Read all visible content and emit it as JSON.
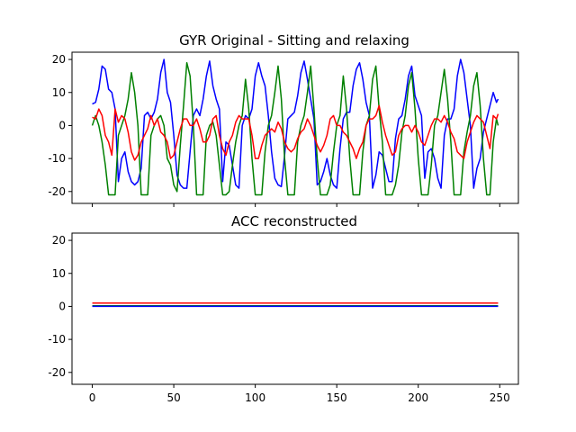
{
  "chart_data": [
    {
      "type": "line",
      "title": "GYR Original - Sitting and relaxing",
      "xlim": [
        -12.45,
        261.45
      ],
      "ylim": [
        -23.6,
        22.2
      ],
      "yticks": [
        20,
        10,
        0,
        -10,
        -20
      ],
      "xticks": [
        0,
        50,
        100,
        150,
        200,
        250
      ],
      "xticklabels_visible": false,
      "grid": false,
      "series": [
        {
          "color": "#0000ff",
          "x": [
            0,
            2,
            4,
            6,
            8,
            10,
            12,
            14,
            16,
            18,
            20,
            22,
            24,
            26,
            28,
            30,
            32,
            34,
            36,
            38,
            40,
            42,
            44,
            46,
            48,
            50,
            52,
            54,
            56,
            58,
            60,
            62,
            64,
            66,
            68,
            70,
            72,
            74,
            76,
            78,
            80,
            82,
            84,
            86,
            88,
            90,
            92,
            94,
            96,
            98,
            100,
            102,
            104,
            106,
            108,
            110,
            112,
            114,
            116,
            118,
            120,
            122,
            124,
            126,
            128,
            130,
            132,
            134,
            136,
            138,
            140,
            142,
            144,
            146,
            148,
            150,
            152,
            154,
            156,
            158,
            160,
            162,
            164,
            166,
            168,
            170,
            172,
            174,
            176,
            178,
            180,
            182,
            184,
            186,
            188,
            190,
            192,
            194,
            196,
            198,
            200,
            202,
            204,
            206,
            208,
            210,
            212,
            214,
            216,
            218,
            220,
            222,
            224,
            226,
            228,
            230,
            232,
            234,
            236,
            238,
            240,
            242,
            244,
            246,
            248,
            249
          ],
          "y": [
            6.5,
            7,
            11,
            18,
            17,
            11,
            10,
            5,
            -17,
            -10,
            -8,
            -14,
            -17,
            -18,
            -17,
            -13,
            3,
            4,
            2,
            4,
            8,
            16,
            20,
            10,
            7,
            -3,
            -15,
            -18,
            -19,
            -19,
            -8,
            3,
            5,
            3,
            8,
            15,
            19.5,
            12,
            8,
            5,
            -17,
            -5,
            -6,
            -12,
            -18,
            -19,
            0,
            3,
            2,
            5,
            15,
            19,
            15,
            12,
            3,
            -8,
            -16,
            -18,
            -18.5,
            -9,
            2,
            3,
            4,
            9,
            16,
            19.5,
            14,
            8,
            2,
            -18,
            -17,
            -14,
            -10,
            -15,
            -18,
            -19,
            -7,
            2,
            4,
            4,
            12,
            17,
            19,
            14,
            7,
            3,
            -19,
            -15,
            -8,
            -9,
            -13,
            -17,
            -17,
            -4,
            2,
            3,
            8,
            15,
            18,
            9,
            6,
            3,
            -16,
            -8,
            -7,
            -10,
            -16,
            -19,
            -3,
            2,
            2,
            5,
            15,
            20,
            16,
            8,
            0,
            -19,
            -13,
            -10,
            -2,
            2,
            6,
            10,
            7,
            8
          ]
        },
        {
          "color": "#008000",
          "x": [
            0,
            2,
            4,
            6,
            8,
            10,
            12,
            14,
            16,
            18,
            20,
            22,
            24,
            26,
            28,
            30,
            32,
            34,
            36,
            38,
            40,
            42,
            44,
            46,
            48,
            50,
            52,
            54,
            56,
            58,
            60,
            62,
            64,
            66,
            68,
            70,
            72,
            74,
            76,
            78,
            80,
            82,
            84,
            86,
            88,
            90,
            92,
            94,
            96,
            98,
            100,
            102,
            104,
            106,
            108,
            110,
            112,
            114,
            116,
            118,
            120,
            122,
            124,
            126,
            128,
            130,
            132,
            134,
            136,
            138,
            140,
            142,
            144,
            146,
            148,
            150,
            152,
            154,
            156,
            158,
            160,
            162,
            164,
            166,
            168,
            170,
            172,
            174,
            176,
            178,
            180,
            182,
            184,
            186,
            188,
            190,
            192,
            194,
            196,
            198,
            200,
            202,
            204,
            206,
            208,
            210,
            212,
            214,
            216,
            218,
            220,
            222,
            224,
            226,
            228,
            230,
            232,
            234,
            236,
            238,
            240,
            242,
            244,
            246,
            248,
            249
          ],
          "y": [
            0,
            3,
            0,
            -5,
            -12,
            -21,
            -21,
            -21,
            -3,
            0,
            3,
            8,
            16,
            10,
            0,
            -21,
            -21,
            -21,
            -3,
            0,
            2,
            3,
            0,
            -10,
            -12,
            -18,
            -20,
            -6,
            6,
            19,
            15,
            0,
            -21,
            -21,
            -21,
            -3,
            0,
            1,
            -3,
            -12,
            -21,
            -21,
            -20,
            -12,
            -5,
            0,
            3,
            14,
            5,
            -10,
            -21,
            -21,
            -21,
            -8,
            0,
            3,
            10,
            18,
            8,
            -10,
            -21,
            -21,
            -21,
            -5,
            0,
            3,
            10,
            18,
            5,
            -10,
            -21,
            -21,
            -21,
            -18,
            -8,
            0,
            3,
            15,
            5,
            -10,
            -21,
            -21,
            -21,
            -8,
            0,
            3,
            14,
            18,
            5,
            -5,
            -21,
            -21,
            -21,
            -18,
            -12,
            -2,
            3,
            12,
            16,
            5,
            -10,
            -21,
            -21,
            -21,
            -12,
            0,
            3,
            10,
            17,
            8,
            -5,
            -21,
            -21,
            -21,
            -8,
            -2,
            3,
            12,
            16,
            6,
            -10,
            -21,
            -21,
            -5,
            2,
            0
          ]
        },
        {
          "color": "#ff0000",
          "x": [
            0,
            2,
            4,
            6,
            8,
            10,
            12,
            14,
            16,
            18,
            20,
            22,
            24,
            26,
            28,
            30,
            32,
            34,
            36,
            38,
            40,
            42,
            44,
            46,
            48,
            50,
            52,
            54,
            56,
            58,
            60,
            62,
            64,
            66,
            68,
            70,
            72,
            74,
            76,
            78,
            80,
            82,
            84,
            86,
            88,
            90,
            92,
            94,
            96,
            98,
            100,
            102,
            104,
            106,
            108,
            110,
            112,
            114,
            116,
            118,
            120,
            122,
            124,
            126,
            128,
            130,
            132,
            134,
            136,
            138,
            140,
            142,
            144,
            146,
            148,
            150,
            152,
            154,
            156,
            158,
            160,
            162,
            164,
            166,
            168,
            170,
            172,
            174,
            176,
            178,
            180,
            182,
            184,
            186,
            188,
            190,
            192,
            194,
            196,
            198,
            200,
            202,
            204,
            206,
            208,
            210,
            212,
            214,
            216,
            218,
            220,
            222,
            224,
            226,
            228,
            230,
            232,
            234,
            236,
            238,
            240,
            242,
            244,
            246,
            248,
            249
          ],
          "y": [
            2.5,
            2,
            5,
            3,
            -3,
            -5,
            -9,
            5,
            1,
            3,
            2,
            -2,
            -8,
            -10.5,
            -9,
            -5,
            -3,
            -1,
            3,
            0,
            2,
            -2,
            -3,
            -5,
            -10,
            -9,
            -5,
            -1,
            2,
            2,
            0,
            0,
            2,
            -1,
            -5,
            -5,
            -3,
            2,
            3,
            -3,
            -7,
            -9,
            -5,
            -3,
            1,
            3,
            2,
            2,
            2,
            -3,
            -10,
            -10,
            -6,
            -3,
            -2,
            -1,
            -2,
            1,
            -1,
            -5,
            -7,
            -8,
            -7,
            -4,
            -2,
            -1,
            2,
            0,
            -3,
            -6,
            -8,
            -6,
            -3,
            2,
            3,
            0,
            0,
            -2,
            -3,
            -5,
            -7,
            -10,
            -7,
            -5,
            0,
            2,
            2,
            3,
            6,
            1,
            -3,
            -6,
            -9,
            -8,
            -3,
            -1,
            0,
            0,
            -2,
            0,
            -2,
            -5,
            -6,
            -3,
            0,
            2,
            2,
            1,
            3,
            1,
            -2,
            -4,
            -8,
            -9,
            -10,
            -5,
            -2,
            1,
            3,
            2,
            1,
            -3,
            -7,
            3,
            2,
            3.5
          ]
        }
      ]
    },
    {
      "type": "line",
      "title": "ACC reconstructed",
      "xlim": [
        -12.45,
        261.45
      ],
      "ylim": [
        -23.6,
        22.2
      ],
      "yticks": [
        20,
        10,
        0,
        -10,
        -20
      ],
      "xticks": [
        0,
        50,
        100,
        150,
        200,
        250
      ],
      "grid": false,
      "series": [
        {
          "color": "#008000",
          "x": [
            0,
            249
          ],
          "y": [
            0.2,
            0.2
          ]
        },
        {
          "color": "#0000ff",
          "x": [
            0,
            249
          ],
          "y": [
            0,
            0
          ]
        },
        {
          "color": "#ff0000",
          "x": [
            0,
            249
          ],
          "y": [
            1,
            1
          ]
        }
      ]
    }
  ]
}
